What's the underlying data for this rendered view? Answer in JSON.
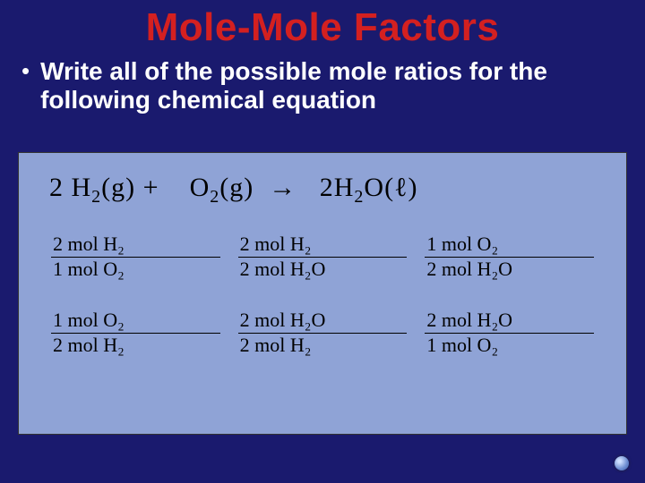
{
  "colors": {
    "background": "#1a1a6e",
    "title": "#d42020",
    "body_text": "#ffffff",
    "box_bg": "#8fa3d6",
    "box_border": "#333333",
    "math_text": "#000000"
  },
  "title": "Mole-Mole Factors",
  "bullet": "Write all of the possible mole ratios for the following chemical equation",
  "equation": {
    "coef1": "2",
    "term1_base": "H",
    "term1_sub": "2",
    "term1_state": "(g)",
    "plus": "+",
    "term2_base": "O",
    "term2_sub": "2",
    "term2_state": "(g)",
    "arrow": "→",
    "coef3": "2",
    "term3_base": "H",
    "term3_sub": "2",
    "term3_compound": "O",
    "term3_state": "(ℓ)"
  },
  "ratios": [
    {
      "num": "2 mol H₂",
      "den": "1 mol O₂"
    },
    {
      "num": "2 mol H₂",
      "den": "2 mol H₂O"
    },
    {
      "num": "1 mol O₂",
      "den": "2 mol H₂O"
    },
    {
      "num": "1 mol O₂",
      "den": "2 mol H₂"
    },
    {
      "num": "2 mol H₂O",
      "den": "2 mol H₂"
    },
    {
      "num": "2 mol H₂O",
      "den": "1 mol O₂"
    }
  ],
  "typography": {
    "title_fontsize": 44,
    "bullet_fontsize": 28,
    "equation_fontsize": 30,
    "fraction_fontsize": 22
  }
}
